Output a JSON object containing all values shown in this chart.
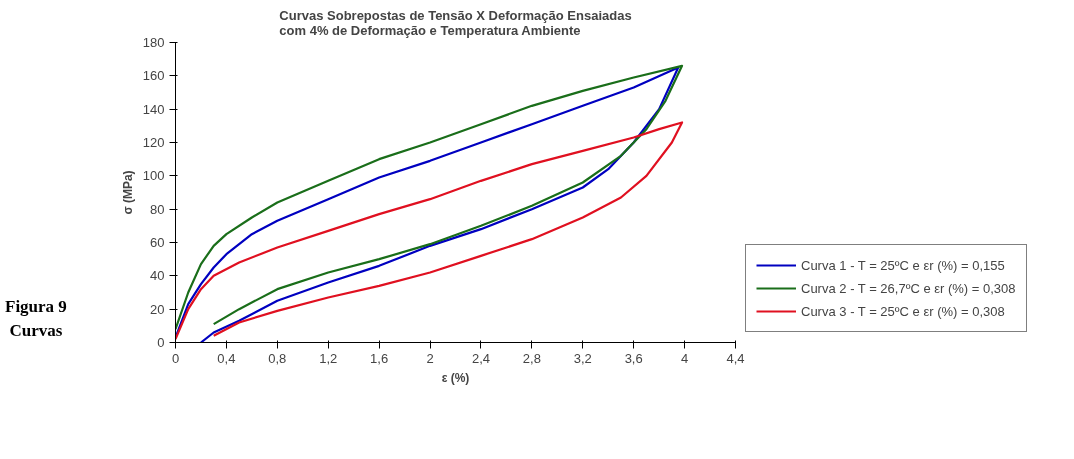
{
  "chart_data": {
    "type": "line",
    "title": "Curvas Sobrepostas de Tensão X Deformação Ensaiadas com 4% de Deformação e Temperatura Ambiente",
    "xlabel": "ε (%)",
    "ylabel": "σ (MPa)",
    "annotations": [
      "Figura 9",
      "Curvas"
    ],
    "xlim": [
      0,
      4.4
    ],
    "ylim": [
      0,
      180
    ],
    "xticks": [
      0,
      {
        "value": 0.4,
        "label": "0,4"
      },
      {
        "value": 0.8,
        "label": "0,8"
      },
      {
        "value": 1.2,
        "label": "1,2"
      },
      {
        "value": 1.6,
        "label": "1,6"
      },
      2,
      {
        "value": 2.4,
        "label": "2,4"
      },
      {
        "value": 2.8,
        "label": "2,8"
      },
      {
        "value": 3.2,
        "label": "3,2"
      },
      {
        "value": 3.6,
        "label": "3,6"
      },
      4,
      {
        "value": 4.4,
        "label": "4,4"
      }
    ],
    "yticks": [
      0,
      20,
      40,
      60,
      80,
      100,
      120,
      140,
      160,
      180
    ],
    "grid": false,
    "legend": "right",
    "marker": "none",
    "line_style": "solid",
    "series": [
      {
        "name": "Curva 1 - T = 25ºC e εr (%) = 0,155",
        "color": "#0000c0",
        "x": [
          0,
          0.1,
          0.2,
          0.3,
          0.4,
          0.6,
          0.8,
          1.2,
          1.6,
          2,
          2.4,
          2.8,
          3.2,
          3.6,
          3.95,
          3.8,
          3.6,
          3.4,
          3.2,
          2.8,
          2.4,
          2,
          1.6,
          1.2,
          0.8,
          0.5,
          0.3,
          0.2
        ],
        "values": [
          3,
          23,
          35,
          45,
          53,
          65,
          73,
          86,
          99,
          109,
          120,
          131,
          142,
          153,
          165,
          140,
          120,
          104,
          93,
          80,
          68,
          58,
          46,
          36,
          25,
          13,
          6,
          0
        ]
      },
      {
        "name": "Curva 2 - T = 26,7ºC e εr (%) = 0,308",
        "color": "#1a6e1a",
        "x": [
          0,
          0.1,
          0.2,
          0.3,
          0.4,
          0.6,
          0.8,
          1.2,
          1.6,
          2,
          2.4,
          2.8,
          3.2,
          3.6,
          3.98,
          3.85,
          3.7,
          3.5,
          3.2,
          2.8,
          2.4,
          2,
          1.6,
          1.2,
          0.8,
          0.5,
          0.3
        ],
        "values": [
          8,
          30,
          47,
          58,
          65,
          75,
          84,
          97,
          110,
          120,
          131,
          142,
          151,
          159,
          166,
          145,
          128,
          112,
          96,
          82,
          70,
          59,
          50,
          42,
          32,
          20,
          11
        ]
      },
      {
        "name": "Curva 3 - T = 25ºC e εr (%) = 0,308",
        "color": "#e01020",
        "x": [
          0,
          0.1,
          0.2,
          0.3,
          0.5,
          0.8,
          1.2,
          1.6,
          2,
          2.4,
          2.8,
          3.2,
          3.6,
          3.8,
          3.98,
          3.9,
          3.7,
          3.5,
          3.2,
          2.8,
          2.4,
          2,
          1.6,
          1.2,
          0.8,
          0.5,
          0.3
        ],
        "values": [
          2,
          20,
          32,
          40,
          48,
          57,
          67,
          77,
          86,
          97,
          107,
          115,
          123,
          128,
          132,
          120,
          100,
          87,
          75,
          62,
          52,
          42,
          34,
          27,
          19,
          12,
          4
        ]
      }
    ]
  }
}
